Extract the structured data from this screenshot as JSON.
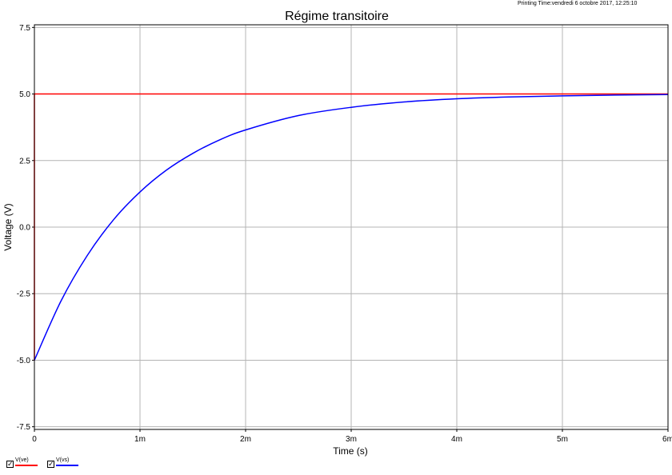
{
  "printing_time": "Printing Time:vendredi 6 octobre 2017, 12:25:10",
  "legend": {
    "items": [
      {
        "label": "V(ve)",
        "checked": true,
        "check_glyph": "✓",
        "color": "#ff0000"
      },
      {
        "label": "V(vs)",
        "checked": true,
        "check_glyph": "✓",
        "color": "#0000ff"
      }
    ]
  },
  "chart_data": {
    "type": "line",
    "title": "Régime transitoire",
    "xlabel": "Time (s)",
    "ylabel": "Voltage (V)",
    "xlim": [
      0,
      0.006
    ],
    "ylim": [
      -7.6,
      7.6
    ],
    "x_ticks": [
      0,
      0.001,
      0.002,
      0.003,
      0.004,
      0.005,
      0.006
    ],
    "x_tick_labels": [
      "0",
      "1m",
      "2m",
      "3m",
      "4m",
      "5m",
      "6m"
    ],
    "y_ticks": [
      -7.5,
      -5,
      -2.5,
      0,
      2.5,
      5,
      7.5
    ],
    "y_tick_labels": [
      "-7.5",
      "-5.0",
      "-2.5",
      "0.0",
      "2.5",
      "5.0",
      "7.5"
    ],
    "grid": true,
    "series": [
      {
        "name": "V(ve)",
        "color": "#ff0000",
        "x": [
          0,
          0,
          0.001,
          0.002,
          0.003,
          0.004,
          0.005,
          0.006
        ],
        "y": [
          -5,
          5,
          5,
          5,
          5,
          5,
          5,
          5
        ]
      },
      {
        "name": "V(vs)",
        "color": "#0000ff",
        "x": [
          0,
          0.00025,
          0.0005,
          0.00075,
          0.001,
          0.00125,
          0.0015,
          0.00175,
          0.002,
          0.0025,
          0.003,
          0.0035,
          0.004,
          0.0045,
          0.005,
          0.0055,
          0.006
        ],
        "y": [
          -5.0,
          -2.79,
          -1.07,
          0.28,
          1.32,
          2.14,
          2.77,
          3.27,
          3.65,
          4.19,
          4.5,
          4.7,
          4.82,
          4.89,
          4.93,
          4.96,
          4.98
        ]
      }
    ]
  }
}
